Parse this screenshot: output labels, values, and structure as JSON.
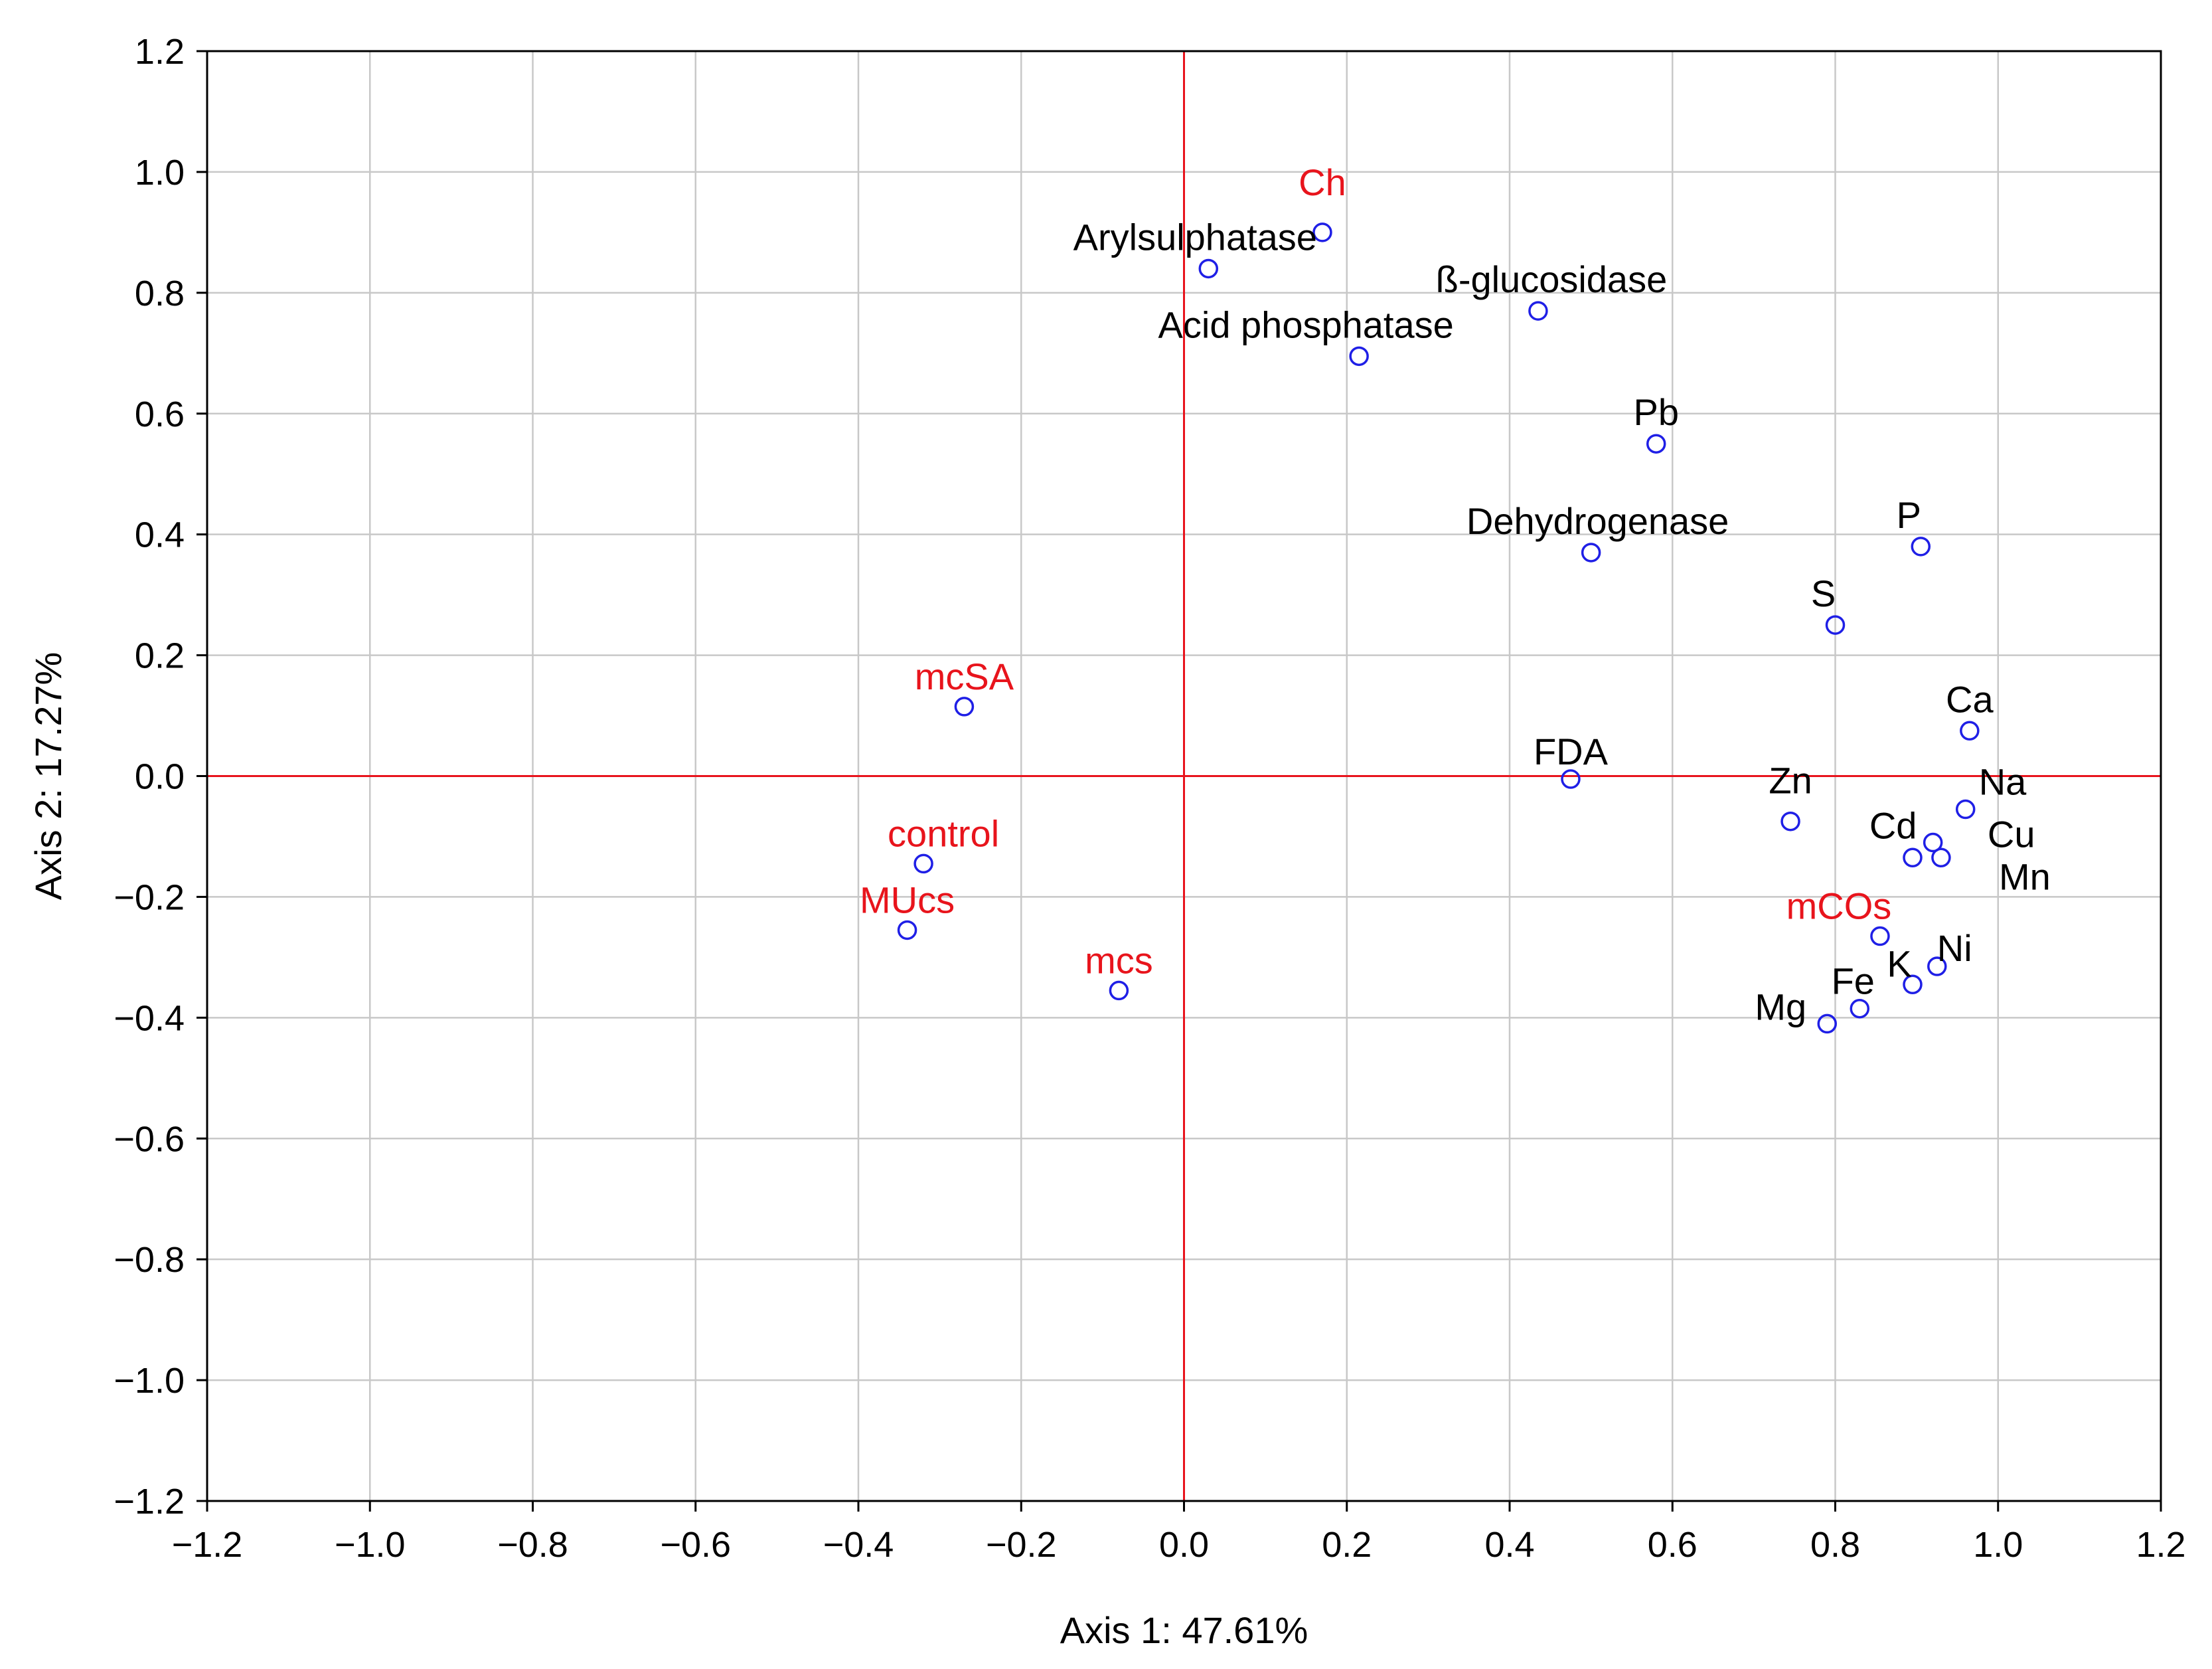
{
  "chart_data": {
    "type": "scatter",
    "title": "",
    "xlabel": "Axis 1: 47.61%",
    "ylabel": "Axis 2: 17.27%",
    "xlim": [
      -1.2,
      1.2
    ],
    "ylim": [
      -1.2,
      1.2
    ],
    "x_ticks": [
      -1.2,
      -1.0,
      -0.8,
      -0.6,
      -0.4,
      -0.2,
      0.0,
      0.2,
      0.4,
      0.6,
      0.8,
      1.0,
      1.2
    ],
    "y_ticks": [
      -1.2,
      -1.0,
      -0.8,
      -0.6,
      -0.4,
      -0.2,
      0.0,
      0.2,
      0.4,
      0.6,
      0.8,
      1.0,
      1.2
    ],
    "x_tick_labels": [
      "−1.2",
      "−1.0",
      "−0.8",
      "−0.6",
      "−0.4",
      "−0.2",
      "0.0",
      "0.2",
      "0.4",
      "0.6",
      "0.8",
      "1.0",
      "1.2"
    ],
    "y_tick_labels": [
      "−1.2",
      "−1.0",
      "−0.8",
      "−0.6",
      "−0.4",
      "−0.2",
      "0.0",
      "0.2",
      "0.4",
      "0.6",
      "0.8",
      "1.0",
      "1.2"
    ],
    "grid": true,
    "zero_lines": true,
    "colors": {
      "marker": "#1f1fe6",
      "variable_label": "#000000",
      "sample_label": "#e8141c",
      "zero_line": "#e8141c",
      "grid": "#c8c8c8"
    },
    "series": [
      {
        "name": "variables",
        "label_color": "#000000",
        "points": [
          {
            "label": "Arylsulphatase",
            "x": 0.03,
            "y": 0.84
          },
          {
            "label": "ß-glucosidase",
            "x": 0.435,
            "y": 0.77
          },
          {
            "label": "Acid phosphatase",
            "x": 0.215,
            "y": 0.695
          },
          {
            "label": "Pb",
            "x": 0.58,
            "y": 0.55
          },
          {
            "label": "Dehydrogenase",
            "x": 0.5,
            "y": 0.37
          },
          {
            "label": "P",
            "x": 0.905,
            "y": 0.38
          },
          {
            "label": "S",
            "x": 0.8,
            "y": 0.25
          },
          {
            "label": "Ca",
            "x": 0.965,
            "y": 0.075
          },
          {
            "label": "FDA",
            "x": 0.475,
            "y": -0.005
          },
          {
            "label": "Na",
            "x": 0.96,
            "y": -0.055
          },
          {
            "label": "Zn",
            "x": 0.745,
            "y": -0.075
          },
          {
            "label": "Cd",
            "x": 0.92,
            "y": -0.11
          },
          {
            "label": "Cu",
            "x": 0.93,
            "y": -0.135
          },
          {
            "label": "Mn",
            "x": 0.895,
            "y": -0.135
          },
          {
            "label": "Ni",
            "x": 0.925,
            "y": -0.315
          },
          {
            "label": "K",
            "x": 0.895,
            "y": -0.345
          },
          {
            "label": "Fe",
            "x": 0.83,
            "y": -0.385
          },
          {
            "label": "Mg",
            "x": 0.79,
            "y": -0.41
          }
        ]
      },
      {
        "name": "samples",
        "label_color": "#e8141c",
        "points": [
          {
            "label": "Ch",
            "x": 0.17,
            "y": 0.9
          },
          {
            "label": "mcSA",
            "x": -0.27,
            "y": 0.115
          },
          {
            "label": "control",
            "x": -0.32,
            "y": -0.145
          },
          {
            "label": "MUcs",
            "x": -0.34,
            "y": -0.255
          },
          {
            "label": "mcs",
            "x": -0.08,
            "y": -0.355
          },
          {
            "label": "mCOs",
            "x": 0.855,
            "y": -0.265
          }
        ]
      }
    ]
  }
}
